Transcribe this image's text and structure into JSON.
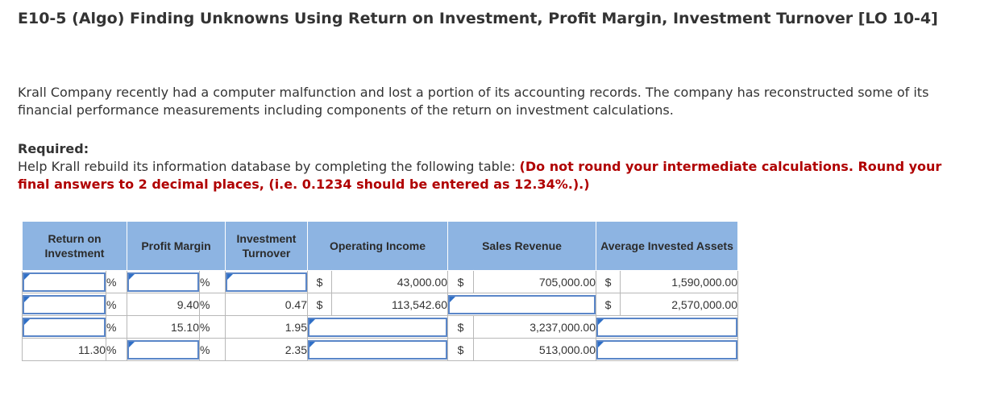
{
  "page": {
    "title": "E10-5 (Algo) Finding Unknowns Using Return on Investment, Profit Margin, Investment Turnover [LO 10-4]",
    "intro": "Krall Company recently had a computer malfunction and lost a portion of its accounting records. The company has reconstructed some of its financial performance measurements including components of the return on investment calculations.",
    "required_label": "Required:",
    "required_text": "Help Krall rebuild its information database by completing the following table: ",
    "required_emphasis": "(Do not round your intermediate calculations. Round your final answers to 2 decimal places, (i.e. 0.1234 should be entered as 12.34%.).)"
  },
  "table": {
    "headers": {
      "roi": "Return on Investment",
      "margin": "Profit Margin",
      "turnover": "Investment Turnover",
      "income": "Operating Income",
      "sales": "Sales Revenue",
      "assets": "Average Invested Assets"
    },
    "percent_symbol": "%",
    "dollar_symbol": "$",
    "rows": [
      {
        "roi": "",
        "margin": "",
        "turnover": "",
        "income": "43,000.00",
        "sales": "705,000.00",
        "assets": "1,590,000.00"
      },
      {
        "roi": "",
        "margin": "9.40",
        "turnover": "0.47",
        "income": "113,542.60",
        "sales": "",
        "assets": "2,570,000.00"
      },
      {
        "roi": "",
        "margin": "15.10",
        "turnover": "1.95",
        "income": "",
        "sales": "3,237,000.00",
        "assets": ""
      },
      {
        "roi": "11.30",
        "margin": "",
        "turnover": "2.35",
        "income": "",
        "sales": "513,000.00",
        "assets": ""
      }
    ]
  }
}
